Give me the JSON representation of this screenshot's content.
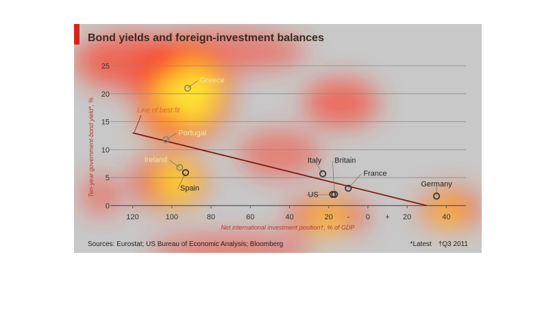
{
  "figure": {
    "title": "Bond yields and foreign-investment balances",
    "sources": "Sources: Eurostat; US Bureau of Economic Analysis; Bloomberg",
    "note_latest": "*Latest",
    "note_q3": "†Q3 2011",
    "accent_color": "#d3261c",
    "background_color": "#c8c8c8"
  },
  "chart_data": {
    "type": "scatter",
    "title": "Bond yields and foreign-investment balances",
    "xlabel": "Net international investment position†, % of GDP",
    "ylabel": "Ten-year government-bond yield*, %",
    "x_scale": "reversed",
    "xlim": [
      130,
      -50
    ],
    "ylim": [
      0,
      25
    ],
    "x_tick_values": [
      120,
      100,
      80,
      60,
      40,
      20,
      0,
      -20,
      -40
    ],
    "x_tick_labels": [
      "120",
      "100",
      "80",
      "60",
      "40",
      "20",
      "-",
      "0",
      "+",
      "20",
      "40"
    ],
    "y_tick_values": [
      0,
      5,
      10,
      15,
      20,
      25
    ],
    "grid": true,
    "points": [
      {
        "label": "Greece",
        "x": 92,
        "y": 21
      },
      {
        "label": "Portugal",
        "x": 103,
        "y": 11.8
      },
      {
        "label": "Ireland",
        "x": 96,
        "y": 6.8
      },
      {
        "label": "Spain",
        "x": 93,
        "y": 5.9
      },
      {
        "label": "Italy",
        "x": 23,
        "y": 5.7
      },
      {
        "label": "Britain",
        "x": 17,
        "y": 2.0
      },
      {
        "label": "US",
        "x": 18,
        "y": 2.0
      },
      {
        "label": "France",
        "x": 10,
        "y": 3.1
      },
      {
        "label": "Germany",
        "x": -35,
        "y": 1.7
      }
    ],
    "fit_line": {
      "label": "Line of best fit",
      "x": [
        120,
        -30
      ],
      "y": [
        13,
        0
      ]
    },
    "point_color": "#8c8a6a",
    "line_color": "#7a1a10"
  }
}
